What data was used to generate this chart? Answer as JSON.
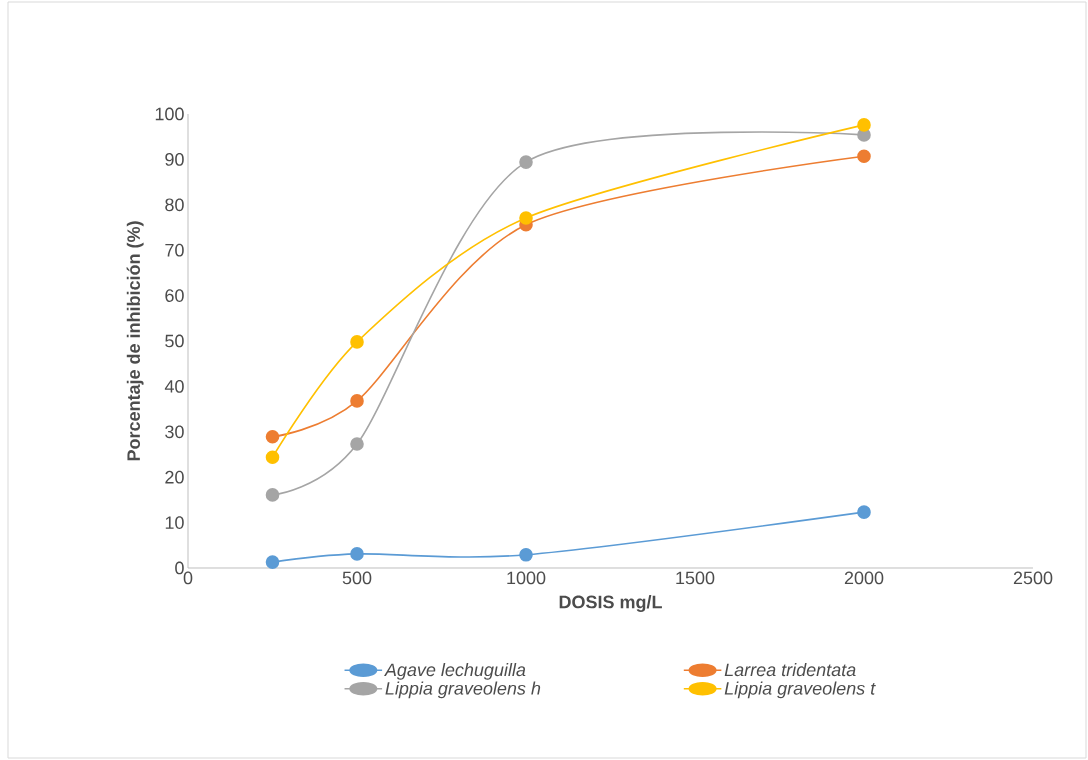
{
  "chart_data": {
    "type": "line",
    "xlabel": "DOSIS mg/L",
    "ylabel": "Porcentaje de inhibición (%)",
    "x": [
      250,
      500,
      1000,
      2000
    ],
    "series": [
      {
        "name": "Agave lechuguilla",
        "color": "#5b9bd5",
        "values": [
          1.3,
          3.1,
          2.9,
          12.3
        ]
      },
      {
        "name": "Larrea tridentata",
        "color": "#ed7d31",
        "values": [
          28.9,
          36.8,
          75.6,
          90.7
        ]
      },
      {
        "name": "Lippia graveolens h",
        "color": "#a5a5a5",
        "values": [
          16.1,
          27.3,
          89.4,
          95.4
        ]
      },
      {
        "name": "Lippia graveolens t",
        "color": "#ffc000",
        "values": [
          24.4,
          49.8,
          77.1,
          97.6
        ]
      }
    ],
    "xlim": [
      0,
      2500
    ],
    "xticks": [
      0,
      500,
      1000,
      1500,
      2000,
      2500
    ],
    "ylim": [
      0,
      100
    ],
    "yticks": [
      0,
      10,
      20,
      30,
      40,
      50,
      60,
      70,
      80,
      90,
      100
    ],
    "legend": "bottom",
    "marker": "circle",
    "grid": false
  }
}
